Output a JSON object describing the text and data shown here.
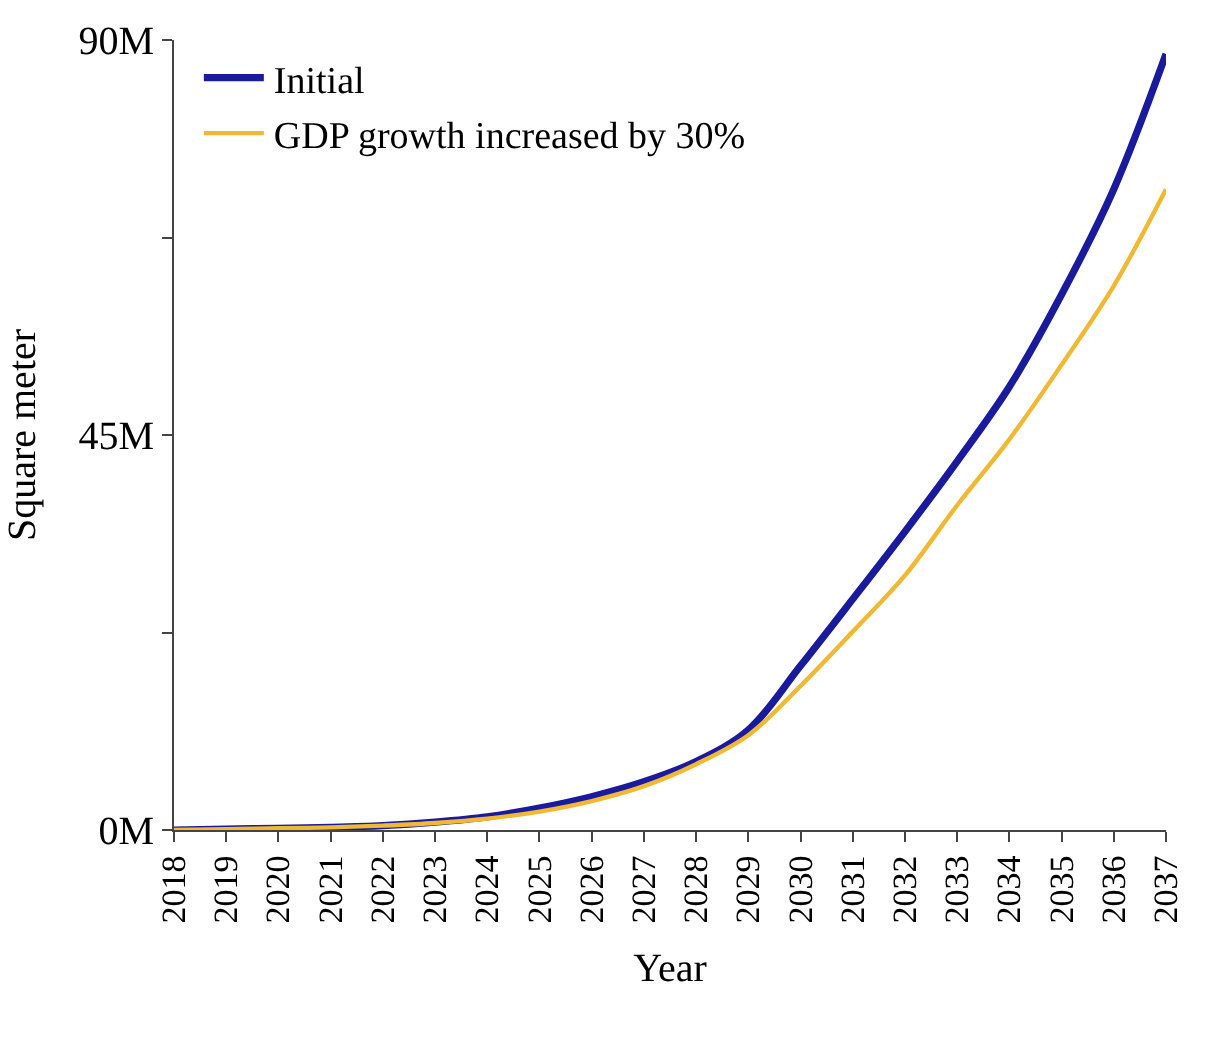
{
  "chart_data": {
    "type": "line",
    "xlabel": "Year",
    "ylabel": "Square meter",
    "x": [
      2018,
      2019,
      2020,
      2021,
      2022,
      2023,
      2024,
      2025,
      2026,
      2027,
      2028,
      2029,
      2030,
      2031,
      2032,
      2033,
      2034,
      2035,
      2036,
      2037
    ],
    "series": [
      {
        "name": "Initial",
        "color": "#1a1a9c",
        "values": [
          0,
          0.1,
          0.2,
          0.3,
          0.5,
          0.9,
          1.5,
          2.5,
          3.8,
          5.5,
          7.8,
          11.4,
          18.7,
          26.3,
          34,
          42,
          50.5,
          61,
          73,
          88.4
        ]
      },
      {
        "name": "GDP growth increased by 30%",
        "color": "#f0b833",
        "values": [
          0,
          0.1,
          0.2,
          0.3,
          0.5,
          0.8,
          1.3,
          2.1,
          3.3,
          5,
          7.5,
          10.8,
          16.4,
          22.6,
          29,
          37,
          44.5,
          53,
          62,
          73
        ]
      }
    ],
    "xlim": [
      2018,
      2037
    ],
    "xticks": [
      2018,
      2019,
      2020,
      2021,
      2022,
      2023,
      2024,
      2025,
      2026,
      2027,
      2028,
      2029,
      2030,
      2031,
      2032,
      2033,
      2034,
      2035,
      2036,
      2037
    ],
    "ylim": [
      0,
      90
    ],
    "yticks": [
      {
        "value": 0,
        "label": "0M"
      },
      {
        "value": 22.5,
        "label": null
      },
      {
        "value": 45,
        "label": "45M"
      },
      {
        "value": 67.5,
        "label": null
      },
      {
        "value": 90,
        "label": "90M"
      }
    ],
    "legend": "top left",
    "marker": "none",
    "line_style": "solid"
  }
}
